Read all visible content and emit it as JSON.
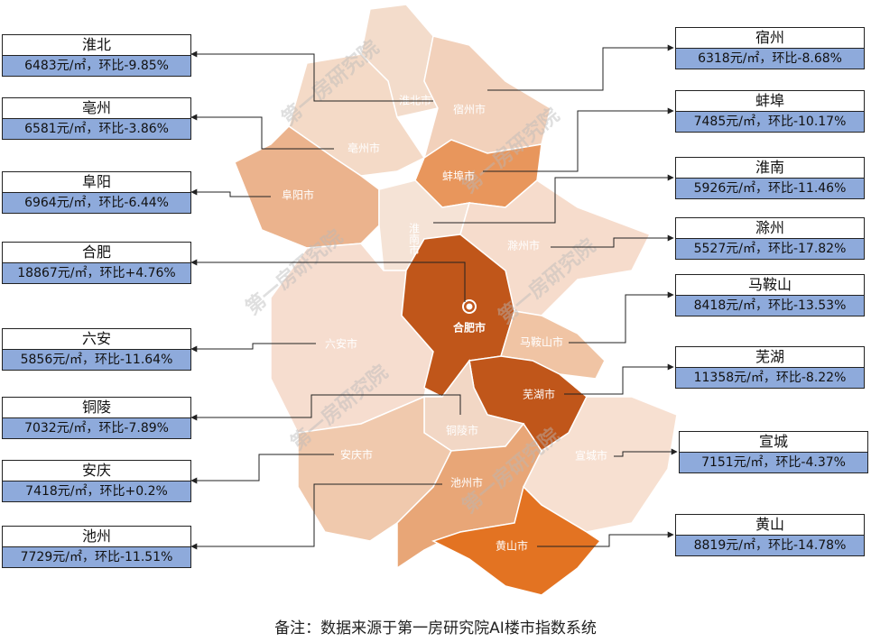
{
  "left_callouts": [
    {
      "name": "淮北",
      "value": "6483元/㎡，环比-9.85%"
    },
    {
      "name": "亳州",
      "value": "6581元/㎡，环比-3.86%"
    },
    {
      "name": "阜阳",
      "value": "6964元/㎡，环比-6.44%"
    },
    {
      "name": "合肥",
      "value": "18867元/㎡，环比+4.76%"
    },
    {
      "name": "六安",
      "value": "5856元/㎡，环比-11.64%"
    },
    {
      "name": "铜陵",
      "value": "7032元/㎡，环比-7.89%"
    },
    {
      "name": "安庆",
      "value": "7418元/㎡，环比+0.2%"
    },
    {
      "name": "池州",
      "value": "7729元/㎡，环比-11.51%"
    }
  ],
  "right_callouts": [
    {
      "name": "宿州",
      "value": "6318元/㎡，环比-8.68%"
    },
    {
      "name": "蚌埠",
      "value": "7485元/㎡，环比-10.17%"
    },
    {
      "name": "淮南",
      "value": "5926元/㎡，环比-11.46%"
    },
    {
      "name": "滁州",
      "value": "5527元/㎡，环比-17.82%"
    },
    {
      "name": "马鞍山",
      "value": "8418元/㎡，环比-13.53%"
    },
    {
      "name": "芜湖",
      "value": "11358元/㎡，环比-8.22%"
    },
    {
      "name": "宣城",
      "value": "7151元/㎡，环比-4.37%"
    },
    {
      "name": "黄山",
      "value": "8819元/㎡，环比-14.78%"
    }
  ],
  "map_labels": [
    "淮北市",
    "宿州市",
    "亳州市",
    "蚌埠市",
    "阜阳市",
    "淮南市",
    "滁州市",
    "合肥市",
    "六安市",
    "马鞍山市",
    "芜湖市",
    "铜陵市",
    "安庆市",
    "宣城市",
    "池州市",
    "黄山市"
  ],
  "watermark": "第一房研究院",
  "footnote": "备注：数据来源于第一房研究院AI楼市指数系统"
}
